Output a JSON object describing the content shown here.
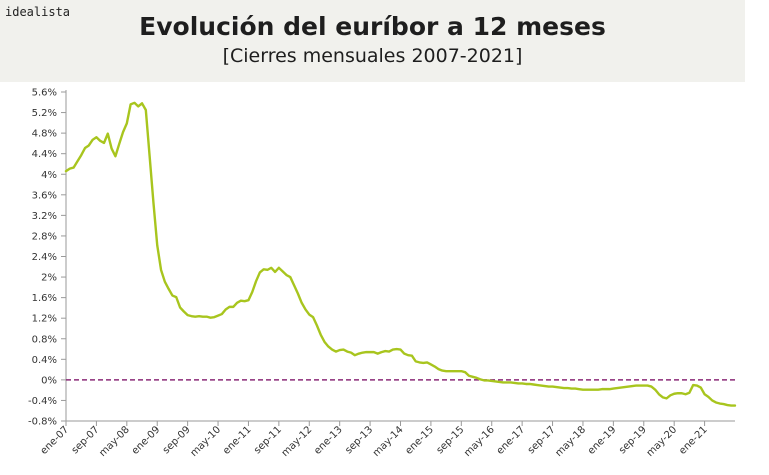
{
  "brand": "idealista",
  "colors": {
    "header_bg": "#f1f1ed",
    "line": "#a8c51e",
    "zero_line": "#8b2a78",
    "axis": "#9a9a9a"
  },
  "chart_data": {
    "type": "line",
    "title": "Evolución del euríbor a 12 meses",
    "subtitle": "[Cierres mensuales 2007-2021]",
    "xlabel": "",
    "ylabel": "",
    "ylim": [
      -0.8,
      5.6
    ],
    "y_ticks": [
      -0.8,
      -0.4,
      0,
      0.4,
      0.8,
      1.2,
      1.6,
      2,
      2.4,
      2.8,
      3.2,
      3.6,
      4,
      4.4,
      4.8,
      5.2,
      5.6
    ],
    "y_tick_labels": [
      "-0.8%",
      "-0.4%",
      "0%",
      "0.4%",
      "0.8%",
      "1.2%",
      "1.6%",
      "2%",
      "2.4%",
      "2.8%",
      "3.2%",
      "3.6%",
      "4%",
      "4.4%",
      "4.8%",
      "5.2%",
      "5.6%"
    ],
    "x_tick_labels": [
      "ene-07",
      "sep-07",
      "may-08",
      "ene-09",
      "sep-09",
      "may-10",
      "ene-11",
      "sep-11",
      "may-12",
      "ene-13",
      "sep-13",
      "may-14",
      "ene-15",
      "sep-15",
      "may-16",
      "ene-17",
      "sep-17",
      "may-18",
      "ene-19",
      "sep-19",
      "may-20",
      "ene-21"
    ],
    "x_tick_months": [
      0,
      8,
      16,
      24,
      32,
      40,
      48,
      56,
      64,
      72,
      80,
      88,
      96,
      104,
      112,
      120,
      128,
      136,
      144,
      152,
      160,
      168
    ],
    "reference_line": {
      "y": 0,
      "style": "dashed"
    },
    "series": [
      {
        "start": "ene-07",
        "frequency": "monthly",
        "values": [
          4.06,
          4.11,
          4.13,
          4.25,
          4.37,
          4.51,
          4.56,
          4.67,
          4.72,
          4.65,
          4.61,
          4.79,
          4.5,
          4.35,
          4.59,
          4.82,
          4.99,
          5.36,
          5.39,
          5.32,
          5.38,
          5.25,
          4.35,
          3.45,
          2.62,
          2.14,
          1.91,
          1.77,
          1.64,
          1.61,
          1.41,
          1.33,
          1.26,
          1.24,
          1.23,
          1.24,
          1.23,
          1.23,
          1.21,
          1.22,
          1.25,
          1.28,
          1.37,
          1.42,
          1.42,
          1.5,
          1.54,
          1.53,
          1.55,
          1.71,
          1.92,
          2.09,
          2.15,
          2.14,
          2.18,
          2.1,
          2.18,
          2.11,
          2.04,
          2.0,
          1.84,
          1.68,
          1.5,
          1.37,
          1.27,
          1.22,
          1.06,
          0.88,
          0.74,
          0.65,
          0.59,
          0.55,
          0.58,
          0.59,
          0.55,
          0.53,
          0.48,
          0.51,
          0.53,
          0.54,
          0.54,
          0.54,
          0.51,
          0.54,
          0.56,
          0.55,
          0.59,
          0.6,
          0.59,
          0.51,
          0.48,
          0.47,
          0.36,
          0.34,
          0.33,
          0.34,
          0.3,
          0.26,
          0.21,
          0.18,
          0.17,
          0.17,
          0.17,
          0.17,
          0.17,
          0.15,
          0.08,
          0.06,
          0.04,
          0.01,
          -0.01,
          -0.01,
          -0.02,
          -0.03,
          -0.04,
          -0.05,
          -0.05,
          -0.05,
          -0.06,
          -0.07,
          -0.07,
          -0.08,
          -0.08,
          -0.09,
          -0.1,
          -0.11,
          -0.12,
          -0.13,
          -0.13,
          -0.14,
          -0.15,
          -0.16,
          -0.16,
          -0.17,
          -0.17,
          -0.18,
          -0.19,
          -0.19,
          -0.19,
          -0.19,
          -0.19,
          -0.18,
          -0.18,
          -0.18,
          -0.17,
          -0.16,
          -0.15,
          -0.14,
          -0.13,
          -0.12,
          -0.11,
          -0.11,
          -0.11,
          -0.11,
          -0.13,
          -0.19,
          -0.28,
          -0.34,
          -0.36,
          -0.3,
          -0.27,
          -0.26,
          -0.26,
          -0.28,
          -0.25,
          -0.1,
          -0.11,
          -0.15,
          -0.28,
          -0.33,
          -0.4,
          -0.44,
          -0.46,
          -0.47,
          -0.49,
          -0.5,
          -0.5
        ]
      }
    ]
  }
}
